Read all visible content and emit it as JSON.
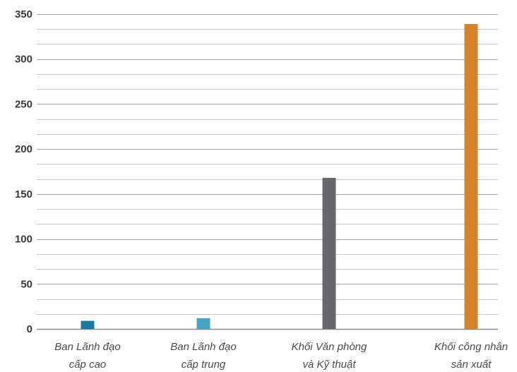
{
  "chart_data": {
    "type": "bar",
    "categories": [
      [
        "Ban Lãnh đạo",
        "cấp cao"
      ],
      [
        "Ban Lãnh đạo",
        "cấp trung"
      ],
      [
        "Khối Văn phòng",
        "và Kỹ thuật"
      ],
      [
        "Khối công nhân",
        "sản xuất"
      ]
    ],
    "values": [
      9,
      12,
      168,
      339
    ],
    "colors": [
      "#1a7a9c",
      "#4aa3c4",
      "#66676b",
      "#d3822f"
    ],
    "ylim": [
      0,
      350
    ],
    "yticks": [
      0,
      50,
      100,
      150,
      200,
      250,
      300,
      350
    ],
    "minor_grid_step": 16.67,
    "grid": true,
    "legend": false,
    "title": "",
    "xlabel": "",
    "ylabel": ""
  }
}
